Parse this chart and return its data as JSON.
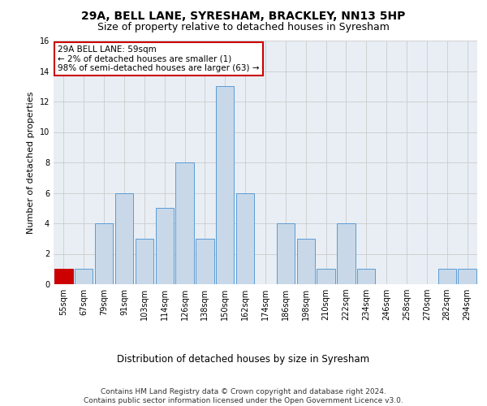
{
  "title1": "29A, BELL LANE, SYRESHAM, BRACKLEY, NN13 5HP",
  "title2": "Size of property relative to detached houses in Syresham",
  "xlabel": "Distribution of detached houses by size in Syresham",
  "ylabel": "Number of detached properties",
  "categories": [
    "55sqm",
    "67sqm",
    "79sqm",
    "91sqm",
    "103sqm",
    "114sqm",
    "126sqm",
    "138sqm",
    "150sqm",
    "162sqm",
    "174sqm",
    "186sqm",
    "198sqm",
    "210sqm",
    "222sqm",
    "234sqm",
    "246sqm",
    "258sqm",
    "270sqm",
    "282sqm",
    "294sqm"
  ],
  "values": [
    1,
    1,
    4,
    6,
    3,
    5,
    8,
    3,
    13,
    6,
    0,
    4,
    3,
    1,
    4,
    1,
    0,
    0,
    0,
    1,
    1
  ],
  "bar_color": "#c8d8e8",
  "bar_edge_color": "#5b9bd5",
  "highlight_bar_index": 0,
  "highlight_bar_color": "#cc0000",
  "highlight_bar_edge_color": "#cc0000",
  "annotation_text": "29A BELL LANE: 59sqm\n← 2% of detached houses are smaller (1)\n98% of semi-detached houses are larger (63) →",
  "annotation_box_color": "#ffffff",
  "annotation_box_edge_color": "#cc0000",
  "ylim": [
    0,
    16
  ],
  "yticks": [
    0,
    2,
    4,
    6,
    8,
    10,
    12,
    14,
    16
  ],
  "grid_color": "#cccccc",
  "bg_color": "#e8eef4",
  "footer_text": "Contains HM Land Registry data © Crown copyright and database right 2024.\nContains public sector information licensed under the Open Government Licence v3.0.",
  "title1_fontsize": 10,
  "title2_fontsize": 9,
  "xlabel_fontsize": 8.5,
  "ylabel_fontsize": 8,
  "tick_fontsize": 7,
  "annotation_fontsize": 7.5,
  "footer_fontsize": 6.5
}
